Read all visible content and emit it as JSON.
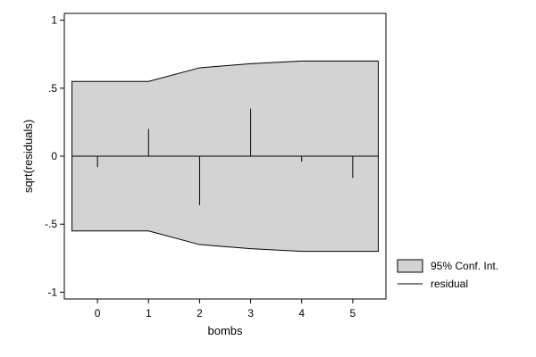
{
  "chart_data": {
    "type": "line",
    "xlabel": "bombs",
    "ylabel": "sqrt(residuals)",
    "xlim": [
      -0.65,
      5.65
    ],
    "ylim": [
      -1.05,
      1.05
    ],
    "x_ticks": [
      0,
      1,
      2,
      3,
      4,
      5
    ],
    "x_tick_labels": [
      "0",
      "1",
      "2",
      "3",
      "4",
      "5"
    ],
    "y_ticks": [
      -1,
      -0.5,
      0,
      0.5,
      1
    ],
    "y_tick_labels": [
      "-1",
      "-.5",
      "0",
      ".5",
      "1"
    ],
    "grid": false,
    "legend_position": "bottom-right",
    "confidence_band": {
      "name": "95% Conf. Int.",
      "color": "#d3d3d3",
      "x": [
        -0.5,
        1,
        2,
        3,
        4,
        5.5
      ],
      "upper": [
        0.55,
        0.55,
        0.65,
        0.68,
        0.7,
        0.7
      ],
      "lower": [
        -0.55,
        -0.55,
        -0.65,
        -0.68,
        -0.7,
        -0.7
      ]
    },
    "series": [
      {
        "name": "residual",
        "type": "spike",
        "color": "#000000",
        "x": [
          0,
          1,
          2,
          3,
          4,
          5
        ],
        "values": [
          -0.08,
          0.2,
          -0.36,
          0.35,
          -0.04,
          -0.16
        ]
      }
    ],
    "legend": [
      {
        "label": "95% Conf. Int.",
        "kind": "box"
      },
      {
        "label": "residual",
        "kind": "line"
      }
    ]
  }
}
